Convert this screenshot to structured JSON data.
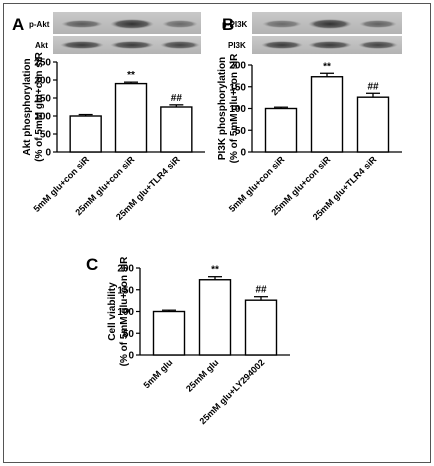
{
  "panels": {
    "A": {
      "letter": "A",
      "blot_labels": [
        "p-Akt",
        "Akt"
      ]
    },
    "B": {
      "letter": "B",
      "blot_labels": [
        "p-PI3K",
        "PI3K"
      ]
    },
    "C": {
      "letter": "C"
    }
  },
  "chart_data": [
    {
      "type": "bar",
      "panel": "A",
      "ylabel": [
        "Akt phosphorylation",
        "(% of 5mM glu+con siR"
      ],
      "ylim": [
        0,
        250
      ],
      "yticks": [
        0,
        50,
        100,
        150,
        200,
        250
      ],
      "categories": [
        "5mM glu+con siR",
        "25mM glu+con siR",
        "25mM glu+TLR4 siR"
      ],
      "values": [
        100,
        190,
        125
      ],
      "errors": [
        4,
        4,
        6
      ],
      "annotations": [
        "",
        "**",
        "##"
      ]
    },
    {
      "type": "bar",
      "panel": "B",
      "ylabel": [
        "PI3K phosphorylation",
        "(% of 5mM glu+con siR"
      ],
      "ylim": [
        0,
        200
      ],
      "yticks": [
        0,
        50,
        100,
        150,
        200
      ],
      "categories": [
        "5mM glu+con siR",
        "25mM glu+con siR",
        "25mM glu+TLR4 siR"
      ],
      "values": [
        100,
        173,
        126
      ],
      "errors": [
        3,
        8,
        9
      ],
      "annotations": [
        "",
        "**",
        "##"
      ]
    },
    {
      "type": "bar",
      "panel": "C",
      "ylabel": [
        "Cell viability",
        "(% of 5mM glu+con siR"
      ],
      "ylim": [
        0,
        200
      ],
      "yticks": [
        0,
        50,
        100,
        150,
        200
      ],
      "categories": [
        "5mM glu",
        "25mM glu",
        "25mM glu+LY294002"
      ],
      "values": [
        100,
        173,
        126
      ],
      "errors": [
        3,
        7,
        8
      ],
      "annotations": [
        "",
        "**",
        "##"
      ]
    }
  ]
}
